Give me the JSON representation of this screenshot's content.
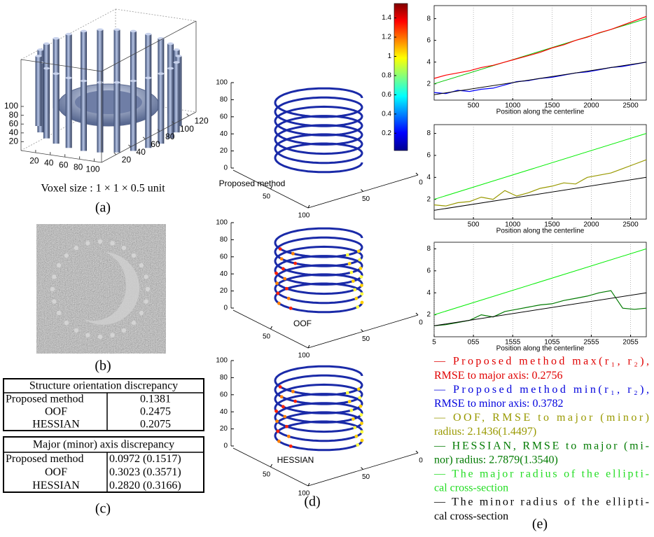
{
  "panel_a": {
    "caption": "(a)",
    "note": "Voxel size : 1 × 1 × 0.5 unit",
    "xticks": [
      20,
      40,
      60,
      80,
      100
    ],
    "yticks": [
      20,
      40,
      60,
      80,
      100,
      120
    ],
    "zticks": [
      20,
      40,
      60,
      80,
      100
    ]
  },
  "panel_b": {
    "caption": "(b)"
  },
  "panel_c": {
    "caption": "(c)",
    "table1": {
      "title": "Structure orientation discrepancy",
      "rows": [
        [
          "Proposed method",
          "0.1381"
        ],
        [
          "OOF",
          "0.2475"
        ],
        [
          "HESSIAN",
          "0.2075"
        ]
      ]
    },
    "table2": {
      "title": "Major (minor) axis discrepancy",
      "rows": [
        [
          "Proposed method",
          "0.0972 (0.1517)"
        ],
        [
          "OOF",
          "0.3023 (0.3571)"
        ],
        [
          "HESSIAN",
          "0.2820 (0.3166)"
        ]
      ]
    }
  },
  "panel_d": {
    "caption": "(d)",
    "xlim": [
      0,
      100
    ],
    "ylim": [
      0,
      100
    ],
    "zlim": [
      0,
      100
    ],
    "colorbar": {
      "lim": [
        0.02,
        1.55
      ],
      "ticks": [
        0.2,
        0.4,
        0.6,
        0.8,
        1,
        1.2,
        1.4
      ]
    },
    "plots": [
      {
        "label": "Proposed method",
        "zticks": [
          0,
          20,
          40,
          60,
          80,
          100
        ],
        "xticks": [
          50,
          100
        ],
        "yticks": [
          50,
          0
        ]
      },
      {
        "label": "OOF",
        "zticks": [
          0,
          20,
          40,
          60,
          80,
          100
        ],
        "xticks": [
          50,
          100
        ],
        "yticks": [
          50,
          0
        ]
      },
      {
        "label": "HESSIAN",
        "zticks": [
          0,
          20,
          40,
          60,
          80,
          100
        ],
        "xticks": [
          50,
          100
        ],
        "yticks": [
          50,
          0
        ]
      }
    ]
  },
  "panel_e": {
    "caption": "(e)",
    "plots": [
      {
        "xlabel": "Position along the centerline",
        "xlim": [
          0,
          2700
        ],
        "ylim": [
          0.5,
          9.2
        ],
        "grid": true,
        "xticks": [
          500,
          1000,
          1500,
          2000,
          2500
        ],
        "yticks": [
          2,
          4,
          6,
          8
        ],
        "series": [
          {
            "color": "#00c800",
            "x": [
              0,
              2700
            ],
            "values": [
              2,
              8
            ]
          },
          {
            "color": "#ff0000",
            "x": [
              0,
              150,
              300,
              450,
              600,
              750,
              900,
              1050,
              1200,
              1350,
              1500,
              1650,
              1800,
              1950,
              2100,
              2250,
              2400,
              2550,
              2700
            ],
            "values": [
              2.5,
              2.8,
              3.0,
              3.2,
              3.5,
              3.7,
              4.0,
              4.3,
              4.6,
              4.9,
              5.3,
              5.6,
              6.0,
              6.3,
              6.7,
              7.0,
              7.4,
              7.8,
              8.2
            ]
          },
          {
            "color": "#0000ff",
            "x": [
              0,
              150,
              300,
              450,
              600,
              750,
              900,
              1050,
              1200,
              1350,
              1500,
              1650,
              1800,
              1950,
              2100,
              2250,
              2400,
              2550,
              2700
            ],
            "values": [
              1.2,
              1.1,
              1.4,
              1.3,
              1.5,
              1.6,
              1.9,
              2.2,
              2.3,
              2.5,
              2.6,
              2.8,
              3.0,
              3.1,
              3.3,
              3.5,
              3.6,
              3.8,
              4.0
            ]
          },
          {
            "color": "#000000",
            "x": [
              0,
              2700
            ],
            "values": [
              1,
              4
            ]
          }
        ]
      },
      {
        "xlabel": "Position along the centerline",
        "xlim": [
          0,
          2700
        ],
        "ylim": [
          0.2,
          8.8
        ],
        "grid": true,
        "xticks": [
          500,
          1000,
          1500,
          2000,
          2500
        ],
        "yticks": [
          2,
          4,
          6,
          8
        ],
        "series": [
          {
            "color": "#00ee00",
            "x": [
              0,
              2700
            ],
            "values": [
              2,
              8
            ]
          },
          {
            "color": "#999900",
            "x": [
              0,
              150,
              300,
              450,
              600,
              750,
              900,
              1050,
              1200,
              1350,
              1500,
              1650,
              1800,
              1950,
              2100,
              2250,
              2400,
              2550,
              2700
            ],
            "values": [
              1.5,
              1.4,
              1.7,
              1.8,
              2.2,
              2.0,
              2.8,
              2.3,
              2.6,
              3.0,
              3.2,
              3.5,
              3.4,
              4.0,
              4.2,
              4.4,
              4.8,
              5.2,
              5.6
            ]
          },
          {
            "color": "#000000",
            "x": [
              0,
              2700
            ],
            "values": [
              1,
              4
            ]
          }
        ]
      },
      {
        "xlabel": "Position along the centerline",
        "xlim": [
          0,
          2700
        ],
        "ylim": [
          0,
          8.6
        ],
        "grid": true,
        "xticks": [
          {
            "value": 0,
            "label": "5"
          },
          {
            "value": 500,
            "label": "055"
          },
          {
            "value": 1000,
            "label": "1555"
          },
          {
            "value": 1500,
            "label": "1055"
          },
          {
            "value": 2000,
            "label": "2555"
          },
          {
            "value": 2500,
            "label": "2055"
          }
        ],
        "yticks": [
          2,
          4,
          6,
          8
        ],
        "series": [
          {
            "color": "#00ee00",
            "x": [
              0,
              2700
            ],
            "values": [
              2,
              8
            ]
          },
          {
            "color": "#007a00",
            "x": [
              0,
              150,
              300,
              450,
              600,
              750,
              900,
              1050,
              1200,
              1350,
              1500,
              1650,
              1800,
              1950,
              2100,
              2250,
              2400,
              2550,
              2700
            ],
            "values": [
              1.0,
              1.1,
              1.3,
              1.5,
              2.0,
              1.8,
              2.3,
              2.5,
              2.7,
              2.9,
              3.0,
              3.3,
              3.5,
              3.7,
              4.0,
              4.2,
              2.6,
              2.5,
              2.6
            ]
          },
          {
            "color": "#000000",
            "x": [
              0,
              2700
            ],
            "values": [
              1,
              4
            ]
          }
        ]
      }
    ],
    "legend": [
      {
        "color": "#e00000",
        "lines": [
          "— Proposed method max(r₁, r₂),",
          "RMSE to major axis: 0.2756"
        ]
      },
      {
        "color": "#0000dd",
        "lines": [
          "— Proposed method min(r₁, r₂),",
          "RMSE to minor axis: 0.3782"
        ]
      },
      {
        "color": "#999900",
        "lines": [
          "— OOF, RMSE to major (minor)",
          "radius: 2.1436(1.4497)"
        ]
      },
      {
        "color": "#007a00",
        "lines": [
          "— HESSIAN, RMSE to major (mi-",
          "nor) radius: 2.7879(1.3540)"
        ]
      },
      {
        "color": "#22dd22",
        "lines": [
          "— The major radius of the ellipti-",
          "cal cross-section"
        ]
      },
      {
        "color": "#000000",
        "lines": [
          "— The minor radius of the ellipti-",
          "cal cross-section"
        ]
      }
    ]
  }
}
